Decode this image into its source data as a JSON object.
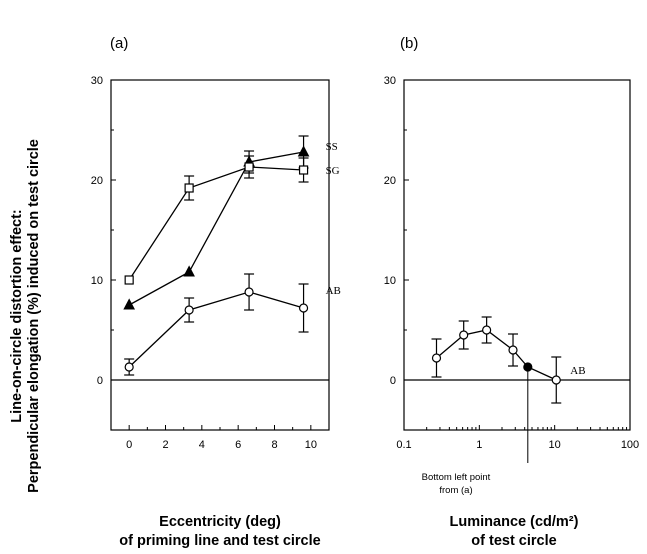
{
  "ylabel_lines": [
    "Line-on-circle distortion effect:",
    "Perpendicular elongation (%) induced on test circle"
  ],
  "chart_data": [
    {
      "panel": "(a)",
      "type": "line",
      "xlabel_lines": [
        "Eccentricity (deg)",
        "of priming line and test circle"
      ],
      "xlim": [
        -1,
        11
      ],
      "ylim": [
        -5,
        30
      ],
      "xticks": [
        "0",
        "2",
        "4",
        "6",
        "8",
        "10"
      ],
      "yticks": [
        "0",
        "10",
        "20",
        "30"
      ],
      "series": [
        {
          "name": "SS",
          "marker": "filled-triangle",
          "x": [
            0,
            3.3,
            6.6,
            9.6
          ],
          "y": [
            7.5,
            10.8,
            21.8,
            22.8
          ],
          "err": [
            0,
            0,
            1.1,
            1.6
          ]
        },
        {
          "name": "SG",
          "marker": "open-square",
          "x": [
            0,
            3.3,
            6.6,
            9.6
          ],
          "y": [
            10.0,
            19.2,
            21.3,
            21.0
          ],
          "err": [
            0,
            1.2,
            1.1,
            1.2
          ]
        },
        {
          "name": "AB",
          "marker": "open-circle",
          "x": [
            0,
            3.3,
            6.6,
            9.6
          ],
          "y": [
            1.3,
            7.0,
            8.8,
            7.2
          ],
          "err": [
            0.8,
            1.2,
            1.8,
            2.4
          ]
        }
      ]
    },
    {
      "panel": "(b)",
      "type": "line",
      "xscale": "log",
      "xlabel_lines": [
        "Luminance (cd/m²)",
        "of test circle"
      ],
      "xlim": [
        0.1,
        100
      ],
      "ylim": [
        -5,
        30
      ],
      "xticks": [
        "0.1",
        "1",
        "10",
        "100"
      ],
      "yticks": [
        "0",
        "10",
        "20",
        "30"
      ],
      "series": [
        {
          "name": "AB",
          "marker": "open-circle",
          "x": [
            0.27,
            0.62,
            1.25,
            2.8,
            4.4,
            10.5
          ],
          "y": [
            2.2,
            4.5,
            5.0,
            3.0,
            1.3,
            0.0
          ],
          "err": [
            1.9,
            1.4,
            1.3,
            1.6,
            0,
            2.3
          ],
          "filled_index": 4
        }
      ],
      "annotation_lines": [
        "Bottom left point",
        "from (a)"
      ]
    }
  ]
}
